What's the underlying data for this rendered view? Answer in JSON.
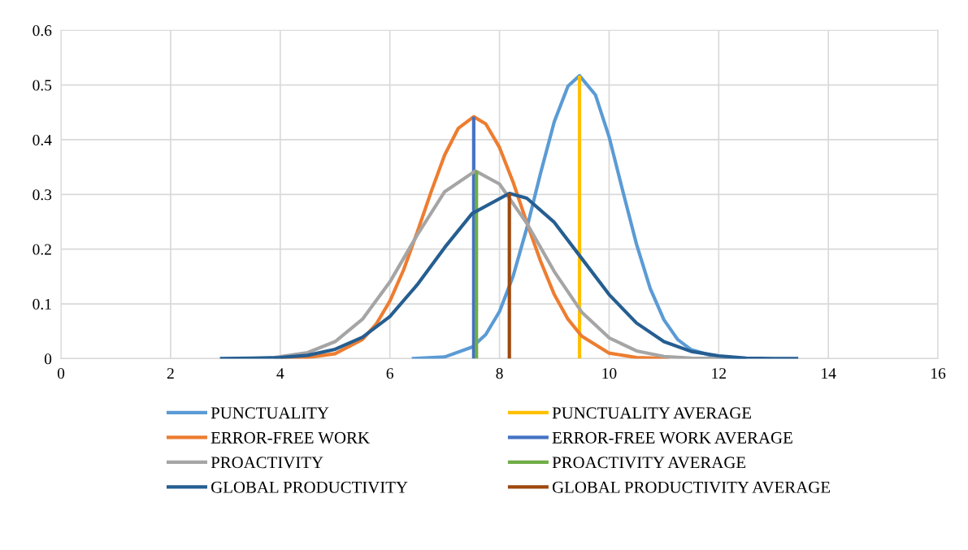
{
  "chart_data": {
    "type": "line",
    "xlim": [
      0,
      16
    ],
    "xticks": [
      0,
      2,
      4,
      6,
      8,
      10,
      12,
      14,
      16
    ],
    "ylim": [
      0,
      0.6
    ],
    "yticks": [
      0,
      0.1,
      0.2,
      0.3,
      0.4,
      0.5,
      0.6
    ],
    "grid": true,
    "legend": "bottom",
    "marker": "none",
    "line_style": "solid",
    "series": [
      {
        "name": "PUNCTUALITY",
        "color": "#5b9bd5",
        "x": [
          6.4,
          7.0,
          7.5,
          7.75,
          8.0,
          8.25,
          8.5,
          8.75,
          9.0,
          9.25,
          9.46,
          9.75,
          10.0,
          10.25,
          10.5,
          10.75,
          11.0,
          11.25,
          11.5,
          12.0,
          12.5
        ],
        "values": [
          0.0,
          0.003,
          0.021,
          0.044,
          0.086,
          0.151,
          0.239,
          0.339,
          0.433,
          0.498,
          0.517,
          0.482,
          0.405,
          0.306,
          0.209,
          0.128,
          0.071,
          0.035,
          0.016,
          0.002,
          0.0
        ]
      },
      {
        "name": "PUNCTUALITY AVERAGE",
        "color": "#ffc000",
        "x": [
          9.46,
          9.46
        ],
        "values": [
          0,
          0.517
        ]
      },
      {
        "name": "ERROR-FREE WORK",
        "color": "#ed7d31",
        "x": [
          4.0,
          4.5,
          5.0,
          5.5,
          5.75,
          6.0,
          6.25,
          6.5,
          6.75,
          7.0,
          7.25,
          7.53,
          7.75,
          8.0,
          8.25,
          8.5,
          8.75,
          9.0,
          9.25,
          9.5,
          10.0,
          10.5,
          11.1
        ],
        "values": [
          0.0,
          0.002,
          0.009,
          0.035,
          0.063,
          0.105,
          0.162,
          0.231,
          0.304,
          0.372,
          0.421,
          0.442,
          0.429,
          0.386,
          0.322,
          0.248,
          0.178,
          0.117,
          0.072,
          0.041,
          0.01,
          0.002,
          0.0
        ]
      },
      {
        "name": "ERROR-FREE WORK AVERAGE",
        "color": "#4472c4",
        "x": [
          7.53,
          7.53
        ],
        "values": [
          0,
          0.442
        ]
      },
      {
        "name": "PROACTIVITY",
        "color": "#a5a5a5",
        "x": [
          3.9,
          4.5,
          5.0,
          5.5,
          6.0,
          6.5,
          7.0,
          7.56,
          8.0,
          8.5,
          9.0,
          9.5,
          10.0,
          10.5,
          11.0,
          11.5,
          12.2
        ],
        "values": [
          0.002,
          0.011,
          0.031,
          0.072,
          0.14,
          0.226,
          0.305,
          0.343,
          0.319,
          0.247,
          0.159,
          0.085,
          0.038,
          0.014,
          0.004,
          0.001,
          0.0
        ]
      },
      {
        "name": "PROACTIVITY AVERAGE",
        "color": "#70ad47",
        "x": [
          7.58,
          7.58
        ],
        "values": [
          0,
          0.343
        ]
      },
      {
        "name": "GLOBAL PRODUCTIVITY",
        "color": "#255e91",
        "x": [
          2.9,
          3.5,
          4.0,
          4.5,
          5.0,
          5.5,
          6.0,
          6.5,
          7.0,
          7.5,
          8.18,
          8.5,
          9.0,
          9.5,
          10.0,
          10.5,
          11.0,
          11.5,
          12.0,
          12.5,
          13.0,
          13.45
        ],
        "values": [
          0.0,
          0.001,
          0.002,
          0.006,
          0.017,
          0.039,
          0.077,
          0.135,
          0.203,
          0.265,
          0.302,
          0.293,
          0.249,
          0.183,
          0.117,
          0.065,
          0.031,
          0.013,
          0.005,
          0.001,
          0.0,
          0.0
        ]
      },
      {
        "name": "GLOBAL PRODUCTIVITY AVERAGE",
        "color": "#9e480e",
        "x": [
          8.18,
          8.18
        ],
        "values": [
          0,
          0.302
        ]
      }
    ]
  }
}
